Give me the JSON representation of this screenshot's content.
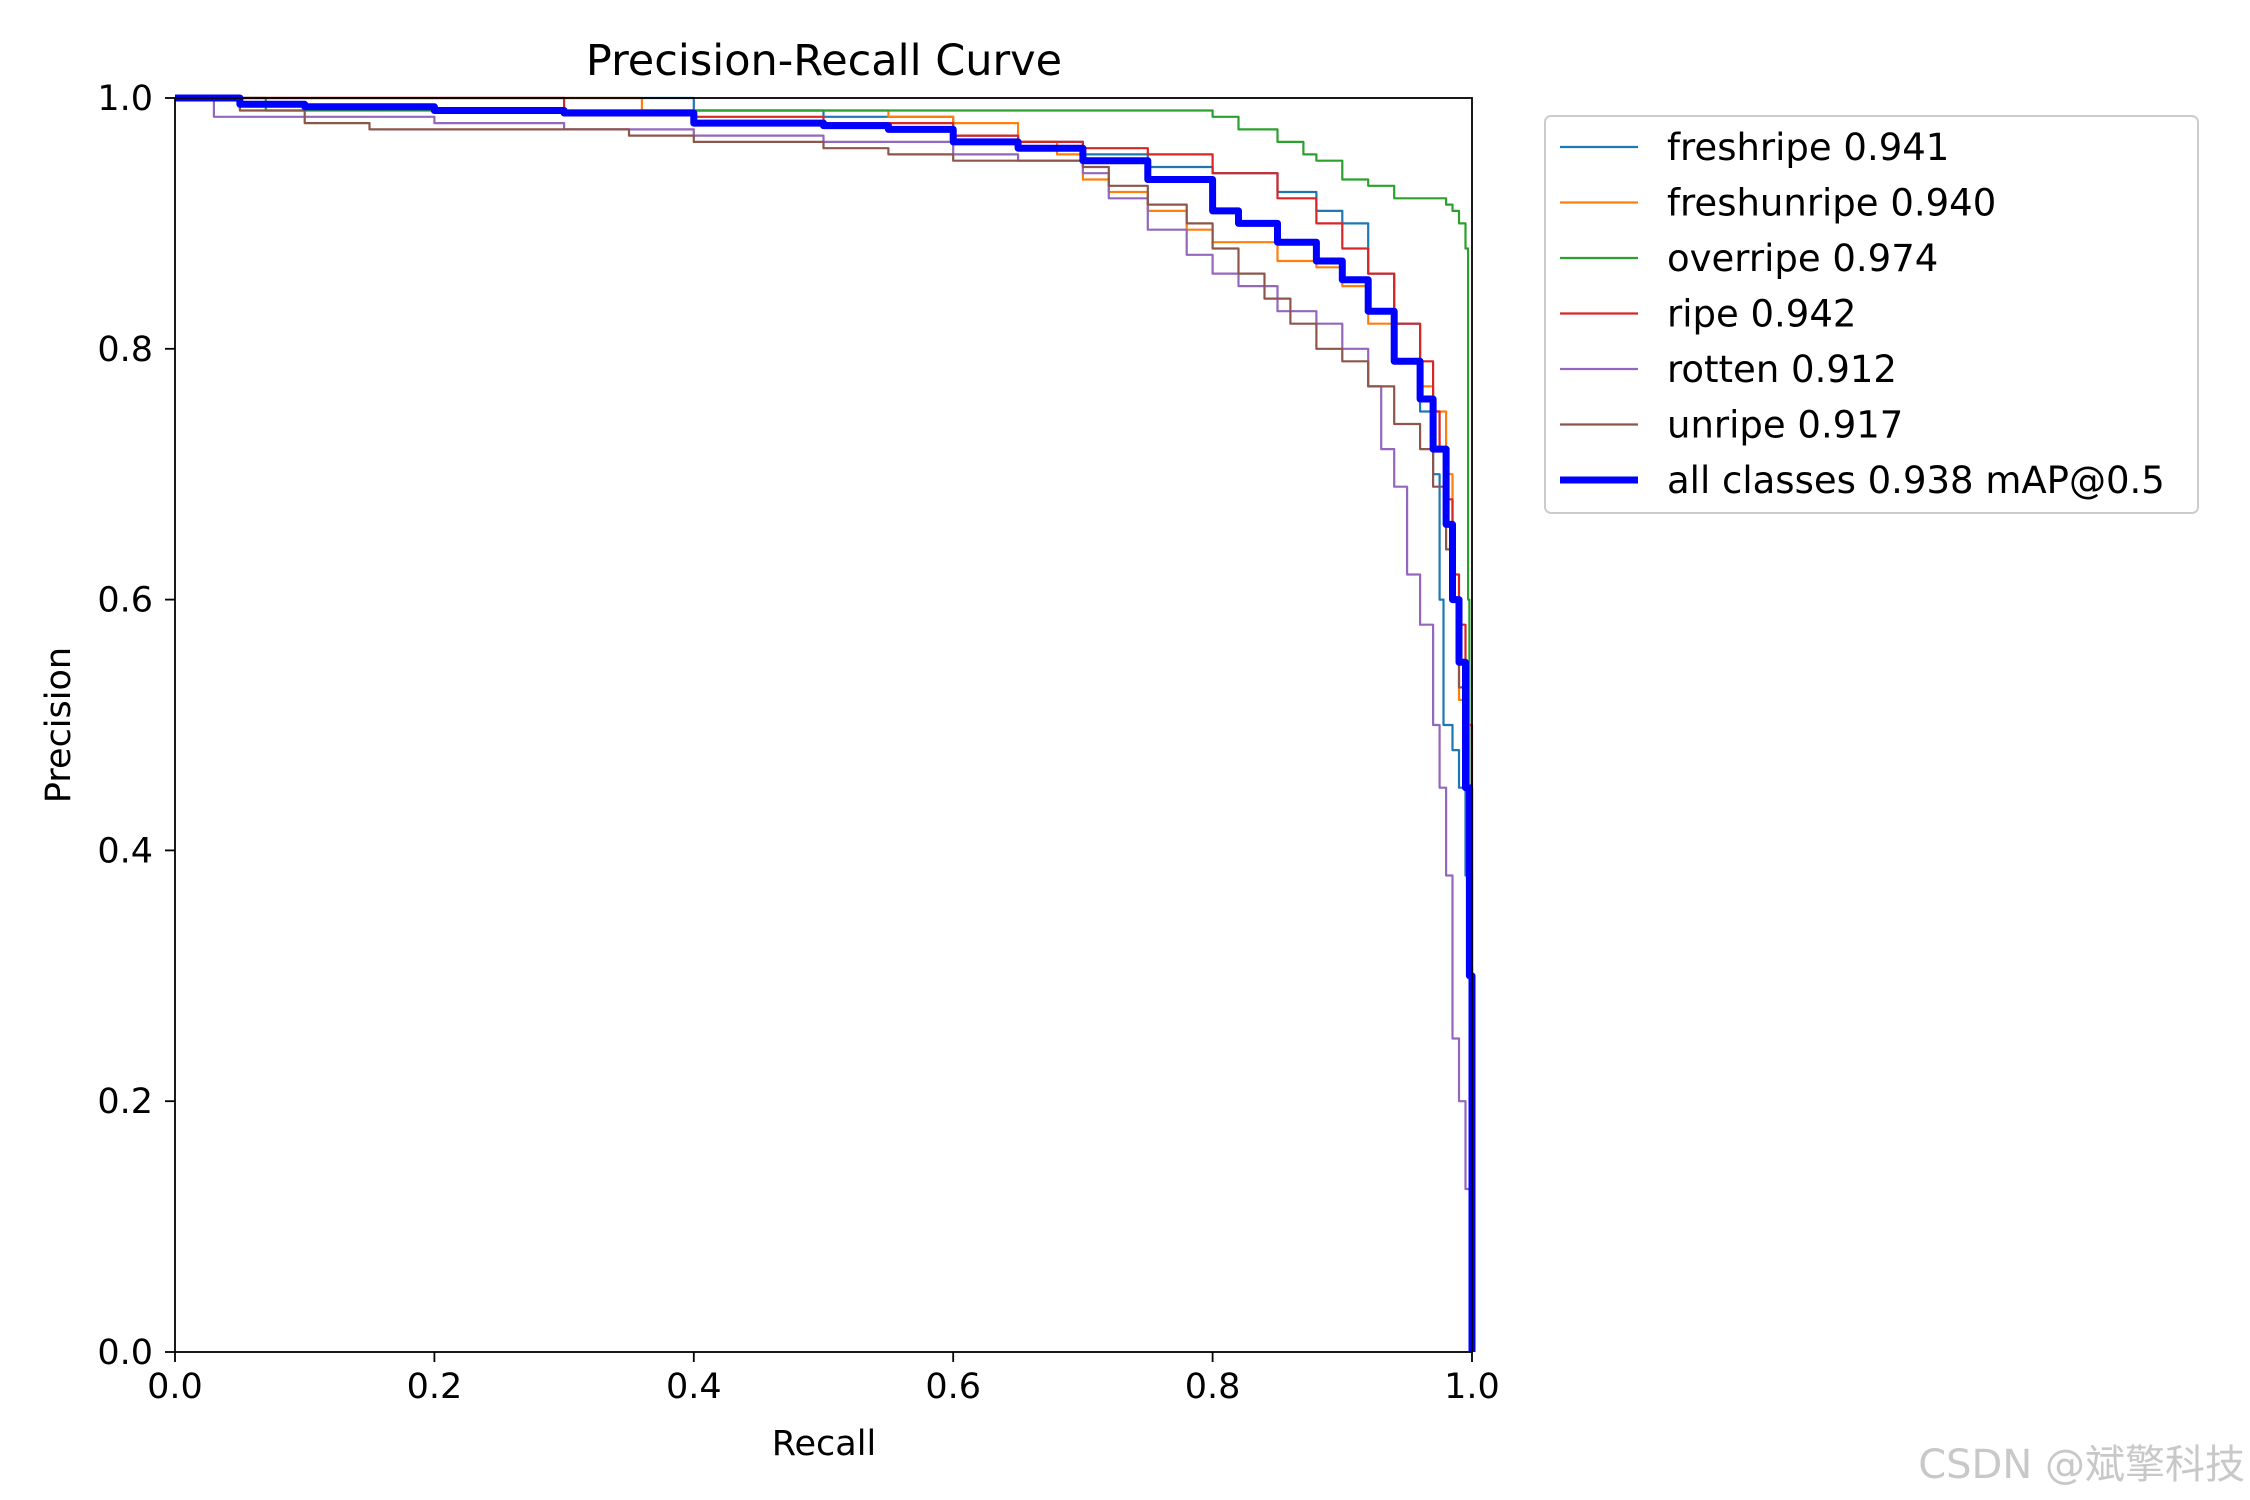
{
  "chart_data": {
    "type": "line",
    "title": "Precision-Recall Curve",
    "xlabel": "Recall",
    "ylabel": "Precision",
    "xlim": [
      0.0,
      1.0
    ],
    "ylim": [
      0.0,
      1.0
    ],
    "xticks": [
      "0.0",
      "0.2",
      "0.4",
      "0.6",
      "0.8",
      "1.0"
    ],
    "yticks": [
      "0.0",
      "0.2",
      "0.4",
      "0.6",
      "0.8",
      "1.0"
    ],
    "grid": false,
    "legend_position": "outside-top-right",
    "series": [
      {
        "name": "freshripe",
        "legend_label": "freshripe 0.941",
        "color": "#1f77b4",
        "width": "thin",
        "points": [
          [
            0,
            1.0
          ],
          [
            0.1,
            1.0
          ],
          [
            0.2,
            1.0
          ],
          [
            0.3,
            1.0
          ],
          [
            0.36,
            1.0
          ],
          [
            0.4,
            0.99
          ],
          [
            0.5,
            0.985
          ],
          [
            0.6,
            0.97
          ],
          [
            0.65,
            0.965
          ],
          [
            0.7,
            0.955
          ],
          [
            0.75,
            0.945
          ],
          [
            0.8,
            0.94
          ],
          [
            0.85,
            0.925
          ],
          [
            0.88,
            0.91
          ],
          [
            0.9,
            0.9
          ],
          [
            0.92,
            0.86
          ],
          [
            0.94,
            0.82
          ],
          [
            0.96,
            0.75
          ],
          [
            0.97,
            0.7
          ],
          [
            0.975,
            0.6
          ],
          [
            0.978,
            0.5
          ],
          [
            0.985,
            0.48
          ],
          [
            0.99,
            0.45
          ],
          [
            0.995,
            0.38
          ],
          [
            1.0,
            0.0
          ]
        ]
      },
      {
        "name": "freshunripe",
        "legend_label": "freshunripe 0.940",
        "color": "#ff7f0e",
        "width": "thin",
        "points": [
          [
            0,
            1.0
          ],
          [
            0.1,
            1.0
          ],
          [
            0.2,
            1.0
          ],
          [
            0.35,
            1.0
          ],
          [
            0.36,
            0.99
          ],
          [
            0.5,
            0.99
          ],
          [
            0.55,
            0.985
          ],
          [
            0.6,
            0.98
          ],
          [
            0.65,
            0.965
          ],
          [
            0.68,
            0.955
          ],
          [
            0.7,
            0.935
          ],
          [
            0.72,
            0.925
          ],
          [
            0.75,
            0.91
          ],
          [
            0.78,
            0.895
          ],
          [
            0.8,
            0.885
          ],
          [
            0.85,
            0.87
          ],
          [
            0.88,
            0.865
          ],
          [
            0.9,
            0.85
          ],
          [
            0.92,
            0.82
          ],
          [
            0.94,
            0.79
          ],
          [
            0.96,
            0.77
          ],
          [
            0.97,
            0.75
          ],
          [
            0.98,
            0.7
          ],
          [
            0.985,
            0.6
          ],
          [
            0.99,
            0.52
          ],
          [
            0.995,
            0.45
          ],
          [
            1.0,
            0.0
          ]
        ]
      },
      {
        "name": "overripe",
        "legend_label": "overripe 0.974",
        "color": "#2ca02c",
        "width": "thin",
        "points": [
          [
            0,
            1.0
          ],
          [
            0.05,
            1.0
          ],
          [
            0.07,
            0.99
          ],
          [
            0.2,
            0.99
          ],
          [
            0.3,
            0.99
          ],
          [
            0.4,
            0.99
          ],
          [
            0.5,
            0.99
          ],
          [
            0.6,
            0.99
          ],
          [
            0.7,
            0.99
          ],
          [
            0.8,
            0.985
          ],
          [
            0.82,
            0.975
          ],
          [
            0.85,
            0.965
          ],
          [
            0.87,
            0.955
          ],
          [
            0.88,
            0.95
          ],
          [
            0.9,
            0.935
          ],
          [
            0.92,
            0.93
          ],
          [
            0.94,
            0.92
          ],
          [
            0.96,
            0.92
          ],
          [
            0.98,
            0.915
          ],
          [
            0.985,
            0.91
          ],
          [
            0.99,
            0.9
          ],
          [
            0.995,
            0.88
          ],
          [
            0.997,
            0.6
          ],
          [
            0.998,
            0.45
          ],
          [
            1.0,
            0.0
          ]
        ]
      },
      {
        "name": "ripe",
        "legend_label": "ripe 0.942",
        "color": "#d62728",
        "width": "thin",
        "points": [
          [
            0,
            1.0
          ],
          [
            0.1,
            1.0
          ],
          [
            0.3,
            0.99
          ],
          [
            0.4,
            0.985
          ],
          [
            0.5,
            0.98
          ],
          [
            0.6,
            0.97
          ],
          [
            0.65,
            0.965
          ],
          [
            0.7,
            0.96
          ],
          [
            0.75,
            0.955
          ],
          [
            0.8,
            0.94
          ],
          [
            0.85,
            0.92
          ],
          [
            0.88,
            0.9
          ],
          [
            0.9,
            0.88
          ],
          [
            0.92,
            0.86
          ],
          [
            0.94,
            0.82
          ],
          [
            0.96,
            0.79
          ],
          [
            0.97,
            0.75
          ],
          [
            0.975,
            0.72
          ],
          [
            0.98,
            0.68
          ],
          [
            0.985,
            0.62
          ],
          [
            0.99,
            0.58
          ],
          [
            0.995,
            0.5
          ],
          [
            1.0,
            0.0
          ]
        ]
      },
      {
        "name": "rotten",
        "legend_label": "rotten 0.912",
        "color": "#9467bd",
        "width": "thin",
        "points": [
          [
            0,
            1.0
          ],
          [
            0.02,
            1.0
          ],
          [
            0.03,
            0.985
          ],
          [
            0.1,
            0.985
          ],
          [
            0.2,
            0.98
          ],
          [
            0.3,
            0.975
          ],
          [
            0.4,
            0.97
          ],
          [
            0.5,
            0.965
          ],
          [
            0.6,
            0.955
          ],
          [
            0.65,
            0.95
          ],
          [
            0.7,
            0.94
          ],
          [
            0.72,
            0.92
          ],
          [
            0.75,
            0.895
          ],
          [
            0.78,
            0.875
          ],
          [
            0.8,
            0.86
          ],
          [
            0.82,
            0.85
          ],
          [
            0.85,
            0.83
          ],
          [
            0.88,
            0.82
          ],
          [
            0.9,
            0.8
          ],
          [
            0.92,
            0.77
          ],
          [
            0.93,
            0.72
          ],
          [
            0.94,
            0.69
          ],
          [
            0.95,
            0.62
          ],
          [
            0.96,
            0.58
          ],
          [
            0.97,
            0.5
          ],
          [
            0.975,
            0.45
          ],
          [
            0.98,
            0.38
          ],
          [
            0.985,
            0.25
          ],
          [
            0.99,
            0.2
          ],
          [
            0.995,
            0.13
          ],
          [
            1.0,
            0.0
          ]
        ]
      },
      {
        "name": "unripe",
        "legend_label": "unripe 0.917",
        "color": "#8c564b",
        "width": "thin",
        "points": [
          [
            0,
            1.0
          ],
          [
            0.05,
            0.99
          ],
          [
            0.1,
            0.98
          ],
          [
            0.15,
            0.975
          ],
          [
            0.3,
            0.975
          ],
          [
            0.35,
            0.97
          ],
          [
            0.4,
            0.965
          ],
          [
            0.5,
            0.96
          ],
          [
            0.55,
            0.955
          ],
          [
            0.6,
            0.95
          ],
          [
            0.65,
            0.95
          ],
          [
            0.7,
            0.945
          ],
          [
            0.72,
            0.93
          ],
          [
            0.75,
            0.915
          ],
          [
            0.78,
            0.9
          ],
          [
            0.8,
            0.88
          ],
          [
            0.82,
            0.86
          ],
          [
            0.84,
            0.84
          ],
          [
            0.86,
            0.82
          ],
          [
            0.88,
            0.8
          ],
          [
            0.9,
            0.79
          ],
          [
            0.92,
            0.77
          ],
          [
            0.94,
            0.74
          ],
          [
            0.96,
            0.72
          ],
          [
            0.97,
            0.69
          ],
          [
            0.98,
            0.64
          ],
          [
            0.985,
            0.6
          ],
          [
            0.99,
            0.53
          ],
          [
            0.995,
            0.45
          ],
          [
            1.0,
            0.0
          ]
        ]
      },
      {
        "name": "all classes",
        "legend_label": "all classes 0.938 mAP@0.5",
        "color": "#0000ff",
        "width": "thick",
        "points": [
          [
            0,
            1.0
          ],
          [
            0.05,
            0.995
          ],
          [
            0.1,
            0.993
          ],
          [
            0.2,
            0.99
          ],
          [
            0.3,
            0.988
          ],
          [
            0.4,
            0.98
          ],
          [
            0.5,
            0.978
          ],
          [
            0.55,
            0.975
          ],
          [
            0.6,
            0.965
          ],
          [
            0.65,
            0.96
          ],
          [
            0.7,
            0.95
          ],
          [
            0.75,
            0.935
          ],
          [
            0.8,
            0.91
          ],
          [
            0.82,
            0.9
          ],
          [
            0.85,
            0.885
          ],
          [
            0.88,
            0.87
          ],
          [
            0.9,
            0.855
          ],
          [
            0.92,
            0.83
          ],
          [
            0.94,
            0.79
          ],
          [
            0.96,
            0.76
          ],
          [
            0.97,
            0.72
          ],
          [
            0.98,
            0.66
          ],
          [
            0.985,
            0.6
          ],
          [
            0.99,
            0.55
          ],
          [
            0.995,
            0.45
          ],
          [
            0.998,
            0.3
          ],
          [
            1.0,
            0.0
          ]
        ]
      }
    ]
  },
  "watermark": {
    "text": "CSDN @斌擎科技"
  }
}
